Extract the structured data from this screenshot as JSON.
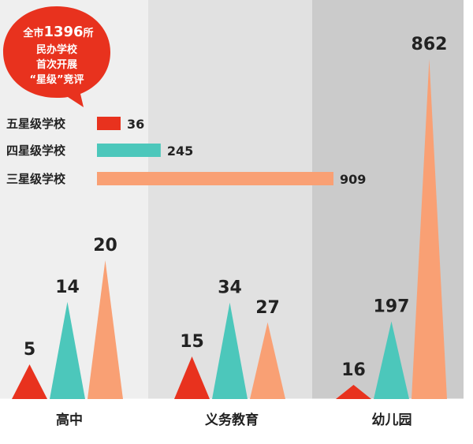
{
  "badge": {
    "line1_prefix": "全市",
    "line1_number": "1396",
    "line1_suffix": "所",
    "line2": "民办学校",
    "line3": "首次开展",
    "line4": "“星级”竞评"
  },
  "colors": {
    "five_star": "#e8321e",
    "four_star": "#4cc7bb",
    "three_star": "#f9a074",
    "panel_light": "#efefef",
    "panel_mid": "#e1e1e1",
    "panel_dark": "#cbcbcb",
    "text": "#222222",
    "badge": "#e8321e"
  },
  "chart_data": [
    {
      "type": "bar",
      "orientation": "horizontal",
      "legend_placement": "top-left",
      "categories": [
        "五星级学校",
        "四星级学校",
        "三星级学校"
      ],
      "values": [
        36,
        245,
        909
      ],
      "colors": [
        "#e8321e",
        "#4cc7bb",
        "#f9a074"
      ]
    },
    {
      "type": "bar",
      "bar_shape": "triangle",
      "categories": [
        "高中",
        "义务教育",
        "幼儿园"
      ],
      "series": [
        {
          "values": [
            5,
            15,
            16
          ],
          "color": "#e8321e"
        },
        {
          "values": [
            14,
            34,
            197
          ],
          "color": "#4cc7bb"
        },
        {
          "values": [
            20,
            27,
            862
          ],
          "color": "#f9a074"
        }
      ],
      "grid": false
    }
  ]
}
